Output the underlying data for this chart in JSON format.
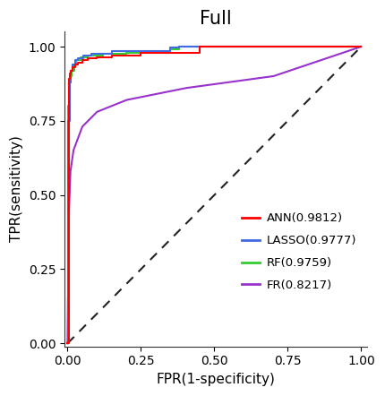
{
  "title": "Full",
  "xlabel": "FPR(1-specificity)",
  "ylabel": "TPR(sensitivity)",
  "xlim": [
    -0.01,
    1.02
  ],
  "ylim": [
    -0.01,
    1.05
  ],
  "xticks": [
    0.0,
    0.25,
    0.5,
    0.75,
    1.0
  ],
  "yticks": [
    0.0,
    0.25,
    0.5,
    0.75,
    1.0
  ],
  "legend_labels": [
    "ANN(0.9812)",
    "LASSO(0.9777)",
    "RF(0.9759)",
    "FR(0.8217)"
  ],
  "legend_colors": [
    "#FF0000",
    "#4169E1",
    "#32CD32",
    "#9932CC"
  ],
  "diagonal_color": "#222222",
  "background_color": "#FFFFFF",
  "title_fontsize": 15,
  "label_fontsize": 11,
  "tick_fontsize": 10,
  "linewidth": 1.5
}
